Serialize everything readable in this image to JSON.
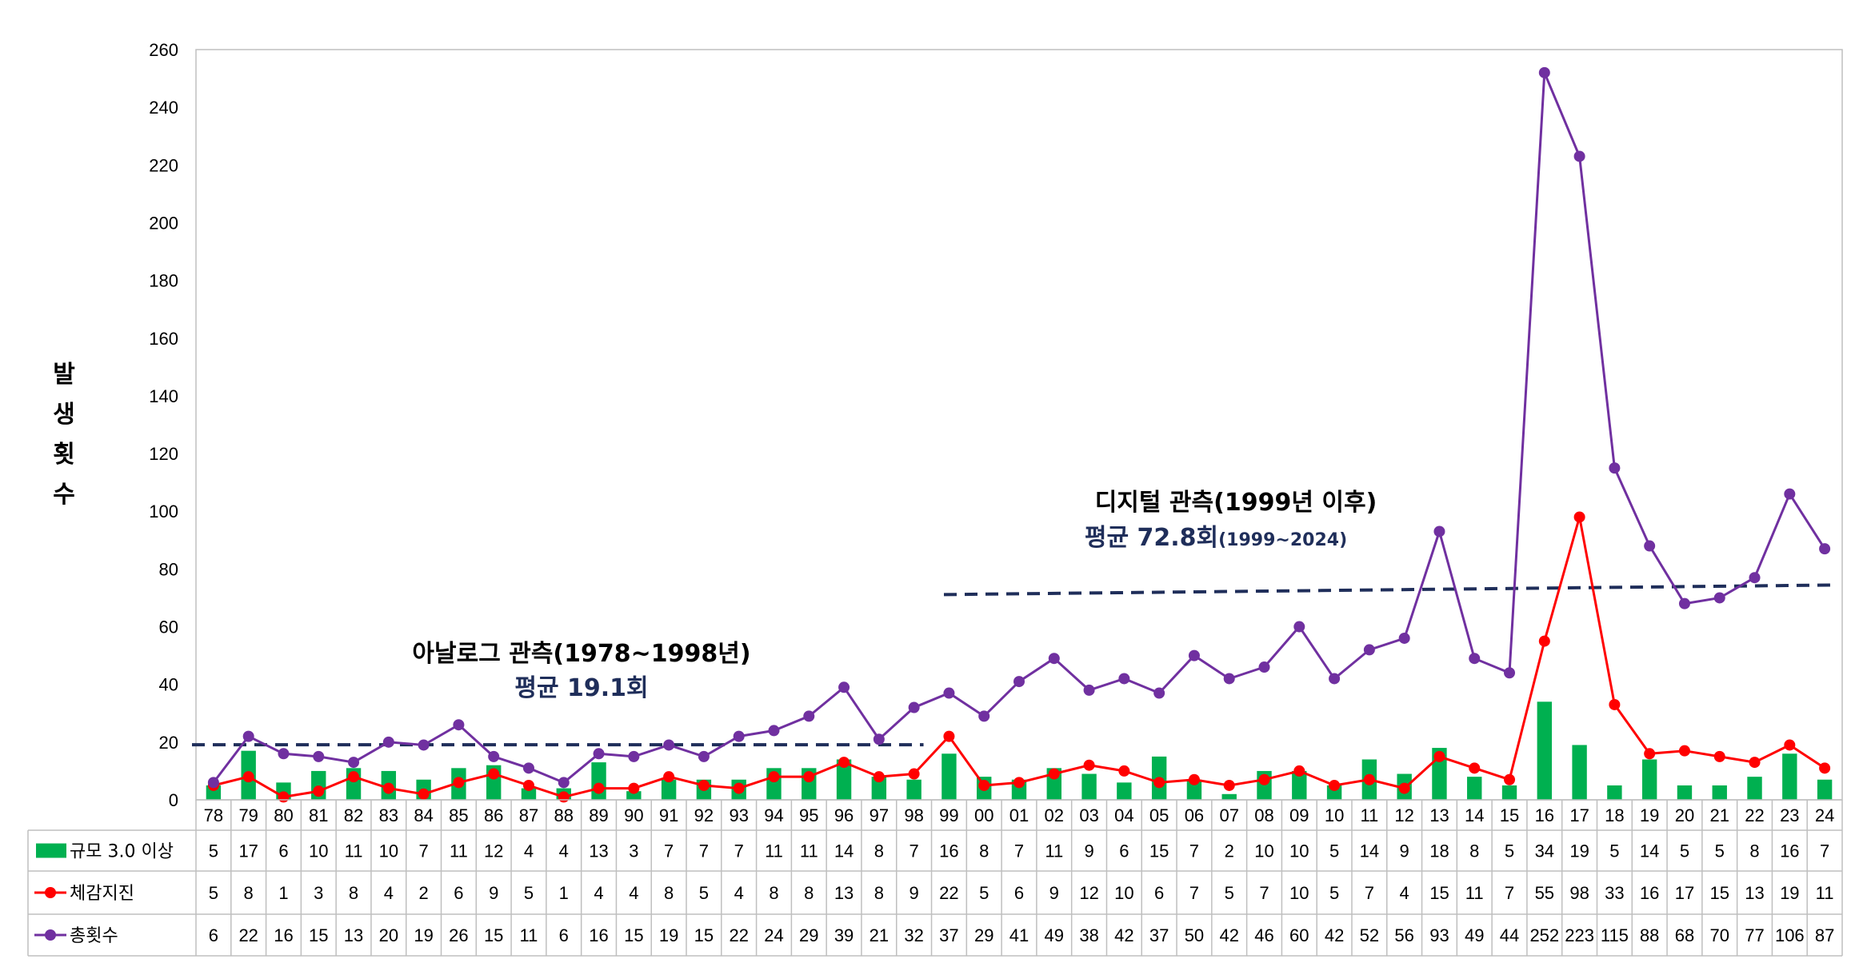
{
  "chart_data": {
    "type": "bar",
    "ylabel": "발생횟수",
    "ylim": [
      0,
      260
    ],
    "yticks": [
      0,
      20,
      40,
      60,
      80,
      100,
      120,
      140,
      160,
      180,
      200,
      220,
      240,
      260
    ],
    "grid": false,
    "categories": [
      "78",
      "79",
      "80",
      "81",
      "82",
      "83",
      "84",
      "85",
      "86",
      "87",
      "88",
      "89",
      "90",
      "91",
      "92",
      "93",
      "94",
      "95",
      "96",
      "97",
      "98",
      "99",
      "00",
      "01",
      "02",
      "03",
      "04",
      "05",
      "06",
      "07",
      "08",
      "09",
      "10",
      "11",
      "12",
      "13",
      "14",
      "15",
      "16",
      "17",
      "18",
      "19",
      "20",
      "21",
      "22",
      "23",
      "24"
    ],
    "series": [
      {
        "name": "규모 3.0 이상",
        "kind": "bar",
        "color": "#00b050",
        "values": [
          5,
          17,
          6,
          10,
          11,
          10,
          7,
          11,
          12,
          4,
          4,
          13,
          3,
          7,
          7,
          7,
          11,
          11,
          14,
          8,
          7,
          16,
          8,
          7,
          11,
          9,
          6,
          15,
          7,
          2,
          10,
          10,
          5,
          14,
          9,
          18,
          8,
          5,
          34,
          19,
          5,
          14,
          5,
          5,
          8,
          16,
          7
        ]
      },
      {
        "name": "체감지진",
        "kind": "line",
        "color": "#ff0000",
        "values": [
          5,
          8,
          1,
          3,
          8,
          4,
          2,
          6,
          9,
          5,
          1,
          4,
          4,
          8,
          5,
          4,
          8,
          8,
          13,
          8,
          9,
          22,
          5,
          6,
          9,
          12,
          10,
          6,
          7,
          5,
          7,
          10,
          5,
          7,
          4,
          15,
          11,
          7,
          55,
          98,
          33,
          16,
          17,
          15,
          13,
          19,
          11
        ]
      },
      {
        "name": "총횟수",
        "kind": "line",
        "color": "#7030a0",
        "values": [
          6,
          22,
          16,
          15,
          13,
          20,
          19,
          26,
          15,
          11,
          6,
          16,
          15,
          19,
          15,
          22,
          24,
          29,
          39,
          21,
          32,
          37,
          29,
          41,
          49,
          38,
          42,
          37,
          50,
          42,
          46,
          60,
          42,
          52,
          56,
          93,
          49,
          44,
          252,
          223,
          115,
          88,
          68,
          70,
          77,
          106,
          87
        ]
      }
    ],
    "annotations": {
      "analog_title": "아날로그 관측(1978~1998년)",
      "analog_avg": "평균 19.1회",
      "analog_avg_value": 19.1,
      "digital_title": "디지털 관측(1999년 이후)",
      "digital_avg": "평균 72.8회",
      "digital_range": "(1999~2024)",
      "digital_avg_value": 72.8
    },
    "avg_line_color": "#1f2e5a"
  }
}
